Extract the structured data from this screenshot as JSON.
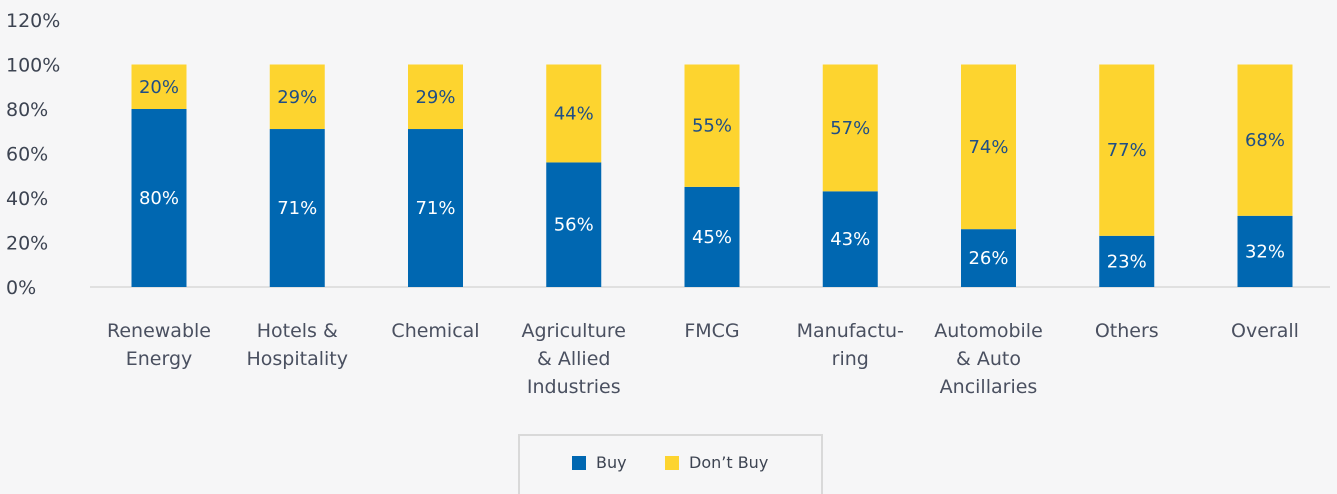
{
  "chart_data": {
    "type": "bar",
    "stacked": true,
    "categories": [
      [
        "Renewable",
        "Energy"
      ],
      [
        "Hotels &",
        "Hospitality"
      ],
      [
        "Chemical"
      ],
      [
        "Agriculture",
        "& Allied",
        "Industries"
      ],
      [
        "FMCG"
      ],
      [
        "Manufactu-",
        "ring"
      ],
      [
        "Automobile",
        "& Auto",
        "Ancillaries"
      ],
      [
        "Others"
      ],
      [
        "Overall"
      ]
    ],
    "series": [
      {
        "name": "Buy",
        "values": [
          80,
          71,
          71,
          56,
          45,
          43,
          26,
          23,
          32
        ],
        "labels": [
          "80%",
          "71%",
          "71%",
          "56%",
          "45%",
          "43%",
          "26%",
          "23%",
          "32%"
        ]
      },
      {
        "name": "Don’t Buy",
        "values": [
          20,
          29,
          29,
          44,
          55,
          57,
          74,
          77,
          68
        ],
        "labels": [
          "20%",
          "29%",
          "29%",
          "44%",
          "55%",
          "57%",
          "74%",
          "77%",
          "68%"
        ]
      }
    ],
    "yticks": [
      "0%",
      "20%",
      "40%",
      "60%",
      "80%",
      "100%",
      "120%"
    ],
    "ylim": [
      0,
      120
    ],
    "grid": false,
    "legend_position": "bottom",
    "colors": {
      "Buy": "#0067b1",
      "Don’t Buy": "#fdd42f"
    }
  }
}
